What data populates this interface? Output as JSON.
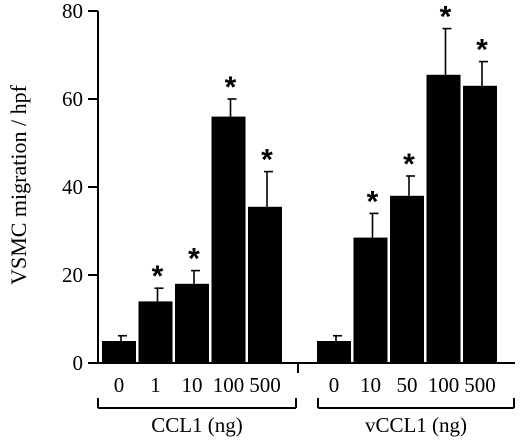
{
  "chart_data": {
    "type": "bar",
    "title": "",
    "xlabel": "",
    "ylabel": "VSMC migration / hpf",
    "ylim": [
      0,
      80
    ],
    "yticks": [
      0,
      20,
      40,
      60,
      80
    ],
    "grid": false,
    "bar_color": "#000000",
    "groups": [
      {
        "label": "CCL1 (ng)",
        "categories": [
          "0",
          "1",
          "10",
          "100",
          "500"
        ],
        "values": [
          5,
          14,
          18,
          56,
          35.5
        ],
        "errors": [
          1.2,
          3,
          3,
          4,
          8
        ],
        "significant": [
          false,
          true,
          true,
          true,
          true
        ]
      },
      {
        "label": "vCCL1 (ng)",
        "categories": [
          "0",
          "10",
          "50",
          "100",
          "500"
        ],
        "values": [
          5,
          28.5,
          38,
          65.5,
          63
        ],
        "errors": [
          1.2,
          5.5,
          4.5,
          10.5,
          5.5
        ],
        "significant": [
          false,
          true,
          true,
          true,
          true
        ]
      }
    ],
    "significance_marker": "*"
  }
}
